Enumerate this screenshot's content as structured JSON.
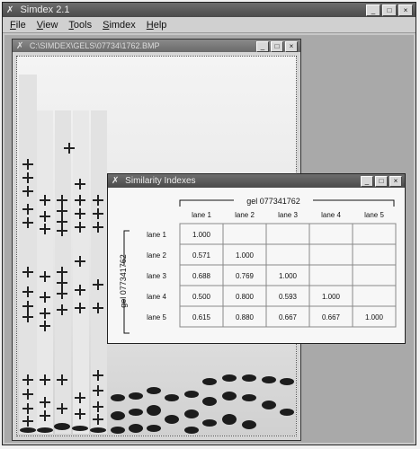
{
  "app": {
    "title": "Simdex 2.1",
    "menu": [
      "File",
      "View",
      "Tools",
      "Simdex",
      "Help"
    ],
    "window_buttons": [
      "_",
      "□",
      "×"
    ]
  },
  "gel_window": {
    "title": "C:\\SIMDEX\\GELS\\07734\\1762.BMP"
  },
  "similarity_window": {
    "title": "Similarity Indexes",
    "col_group_label": "gel 077341762",
    "row_group_label": "gel 077341762",
    "columns": [
      "lane 1",
      "lane 2",
      "lane 3",
      "lane 4",
      "lane 5"
    ],
    "rows": [
      {
        "label": "lane 1",
        "values": [
          "1.000",
          "",
          "",
          "",
          ""
        ]
      },
      {
        "label": "lane 2",
        "values": [
          "0.571",
          "1.000",
          "",
          "",
          ""
        ]
      },
      {
        "label": "lane 3",
        "values": [
          "0.688",
          "0.769",
          "1.000",
          "",
          ""
        ]
      },
      {
        "label": "lane 4",
        "values": [
          "0.500",
          "0.800",
          "0.593",
          "1.000",
          ""
        ]
      },
      {
        "label": "lane 5",
        "values": [
          "0.615",
          "0.880",
          "0.667",
          "0.667",
          "1.000"
        ]
      }
    ]
  }
}
